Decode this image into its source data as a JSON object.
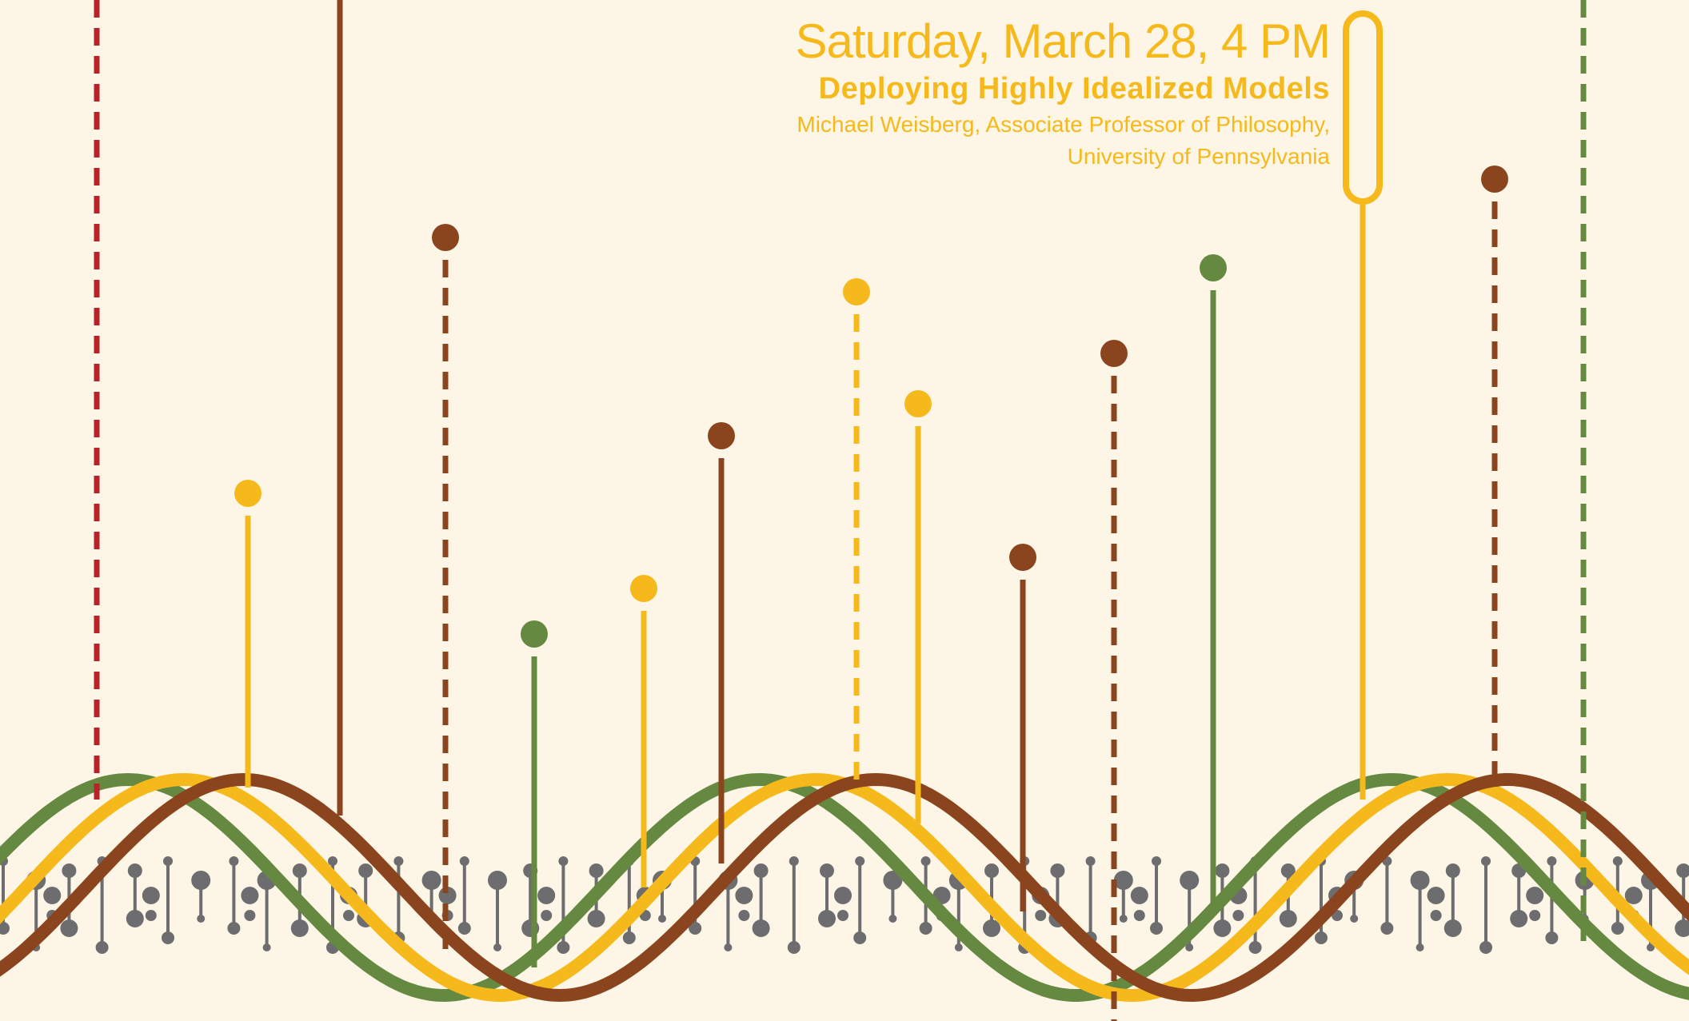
{
  "event": {
    "date": "Saturday, March 28, 4 PM",
    "title": "Deploying Highly Idealized Models",
    "speaker": "Michael Weisberg, Associate Professor of Philosophy,",
    "affiliation": "University of Pennsylvania"
  },
  "colors": {
    "background": "#fdf6e6",
    "yellow": "#f6b91c",
    "brown": "#8b451e",
    "green": "#668942",
    "red": "#b8232a",
    "gray": "#6d6d6f"
  },
  "artwork": {
    "waves": [
      "green",
      "yellow",
      "brown"
    ],
    "pins": [
      {
        "color": "red",
        "style": "dashed",
        "head": "none"
      },
      {
        "color": "yellow",
        "style": "solid",
        "head": "dot"
      },
      {
        "color": "brown",
        "style": "solid",
        "head": "none"
      },
      {
        "color": "brown",
        "style": "dashed",
        "head": "dot"
      },
      {
        "color": "green",
        "style": "solid",
        "head": "dot"
      },
      {
        "color": "yellow",
        "style": "solid",
        "head": "dot"
      },
      {
        "color": "brown",
        "style": "solid",
        "head": "dot"
      },
      {
        "color": "yellow",
        "style": "dashed",
        "head": "dot"
      },
      {
        "color": "yellow",
        "style": "solid",
        "head": "dot"
      },
      {
        "color": "brown",
        "style": "solid",
        "head": "dot"
      },
      {
        "color": "brown",
        "style": "dashed",
        "head": "dot"
      },
      {
        "color": "green",
        "style": "solid",
        "head": "dot"
      },
      {
        "color": "yellow",
        "style": "solid",
        "head": "capsule"
      },
      {
        "color": "brown",
        "style": "dashed",
        "head": "dot"
      },
      {
        "color": "green",
        "style": "dashed",
        "head": "none"
      }
    ]
  }
}
